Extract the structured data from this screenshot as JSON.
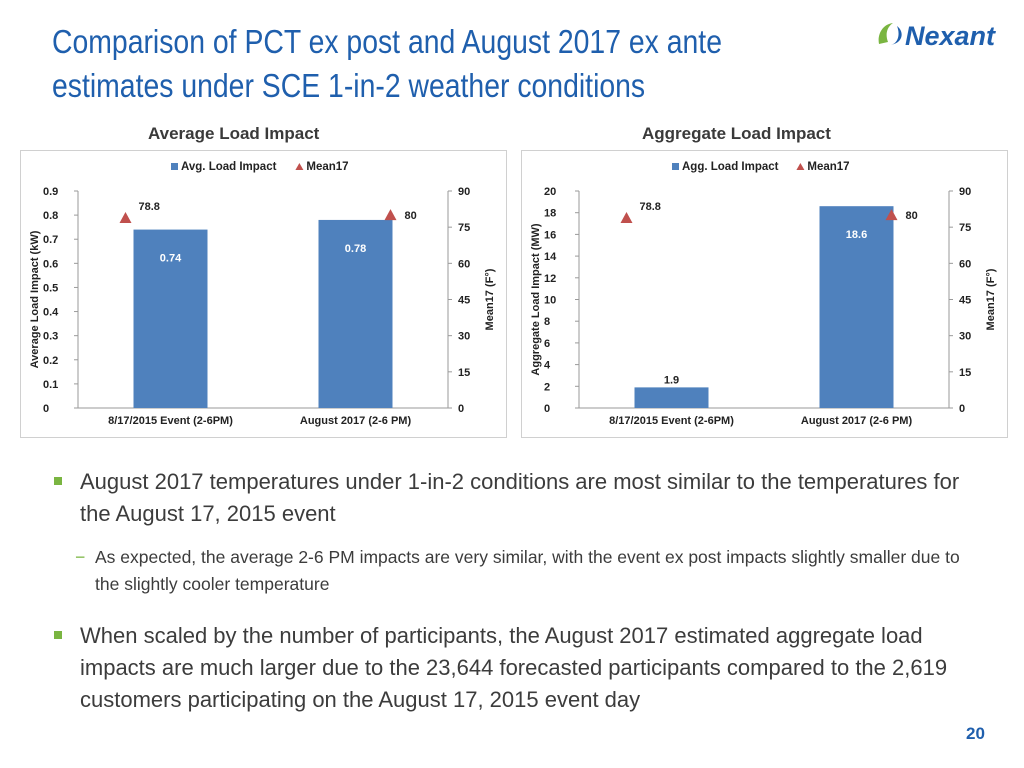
{
  "slide": {
    "title_line1": "Comparison of PCT ex post and August 2017 ex ante",
    "title_line2": "estimates under SCE 1-in-2 weather conditions",
    "page_number": "20"
  },
  "logo": {
    "text": "Nexant",
    "color": "#1f5fad"
  },
  "chart_data": [
    {
      "type": "bar",
      "panel_title": "Average Load Impact",
      "categories": [
        "8/17/2015 Event (2-6PM)",
        "August 2017 (2-6 PM)"
      ],
      "series": [
        {
          "name": "Avg. Load Impact",
          "values": [
            0.74,
            0.78
          ],
          "labels": [
            "0.74",
            "0.78"
          ],
          "color": "#4f81bd",
          "axis": "left"
        },
        {
          "name": "Mean17",
          "values": [
            78.8,
            80
          ],
          "labels": [
            "78.8",
            "80"
          ],
          "color": "#c0504d",
          "axis": "right",
          "marker": "triangle"
        }
      ],
      "ylabel": "Average Load Impact (kW)",
      "y2label": "Mean17 (F°)",
      "ylim": [
        0,
        0.9
      ],
      "y2lim": [
        0,
        90
      ],
      "yticks": [
        "0",
        "0.1",
        "0.2",
        "0.3",
        "0.4",
        "0.5",
        "0.6",
        "0.7",
        "0.8",
        "0.9"
      ],
      "y2ticks": [
        "0",
        "15",
        "30",
        "45",
        "60",
        "75",
        "90"
      ],
      "legend": "top-center",
      "grid": false
    },
    {
      "type": "bar",
      "panel_title": "Aggregate Load Impact",
      "categories": [
        "8/17/2015 Event (2-6PM)",
        "August 2017 (2-6 PM)"
      ],
      "series": [
        {
          "name": "Agg. Load Impact",
          "values": [
            1.9,
            18.6
          ],
          "labels": [
            "1.9",
            "18.6"
          ],
          "color": "#4f81bd",
          "axis": "left"
        },
        {
          "name": "Mean17",
          "values": [
            78.8,
            80
          ],
          "labels": [
            "78.8",
            "80"
          ],
          "color": "#c0504d",
          "axis": "right",
          "marker": "triangle"
        }
      ],
      "ylabel": "Aggregate Load Impact (MW)",
      "y2label": "Mean17 (F°)",
      "ylim": [
        0,
        20
      ],
      "y2lim": [
        0,
        90
      ],
      "yticks": [
        "0",
        "2",
        "4",
        "6",
        "8",
        "10",
        "12",
        "14",
        "16",
        "18",
        "20"
      ],
      "y2ticks": [
        "0",
        "15",
        "30",
        "45",
        "60",
        "75",
        "90"
      ],
      "legend": "top-center",
      "grid": false
    }
  ],
  "bullets": {
    "b1": "August 2017 temperatures under 1-in-2 conditions are most similar to the temperatures for the August 17, 2015 event",
    "b1_sub": "As expected, the average 2-6 PM impacts are very similar, with the event ex post impacts slightly smaller due to the slightly cooler temperature",
    "b2": "When scaled by the number of participants, the August 2017 estimated aggregate load impacts are much larger due to the 23,644 forecasted participants compared to the 2,619 customers participating on the August 17, 2015 event day",
    "sub_marker": "−"
  }
}
